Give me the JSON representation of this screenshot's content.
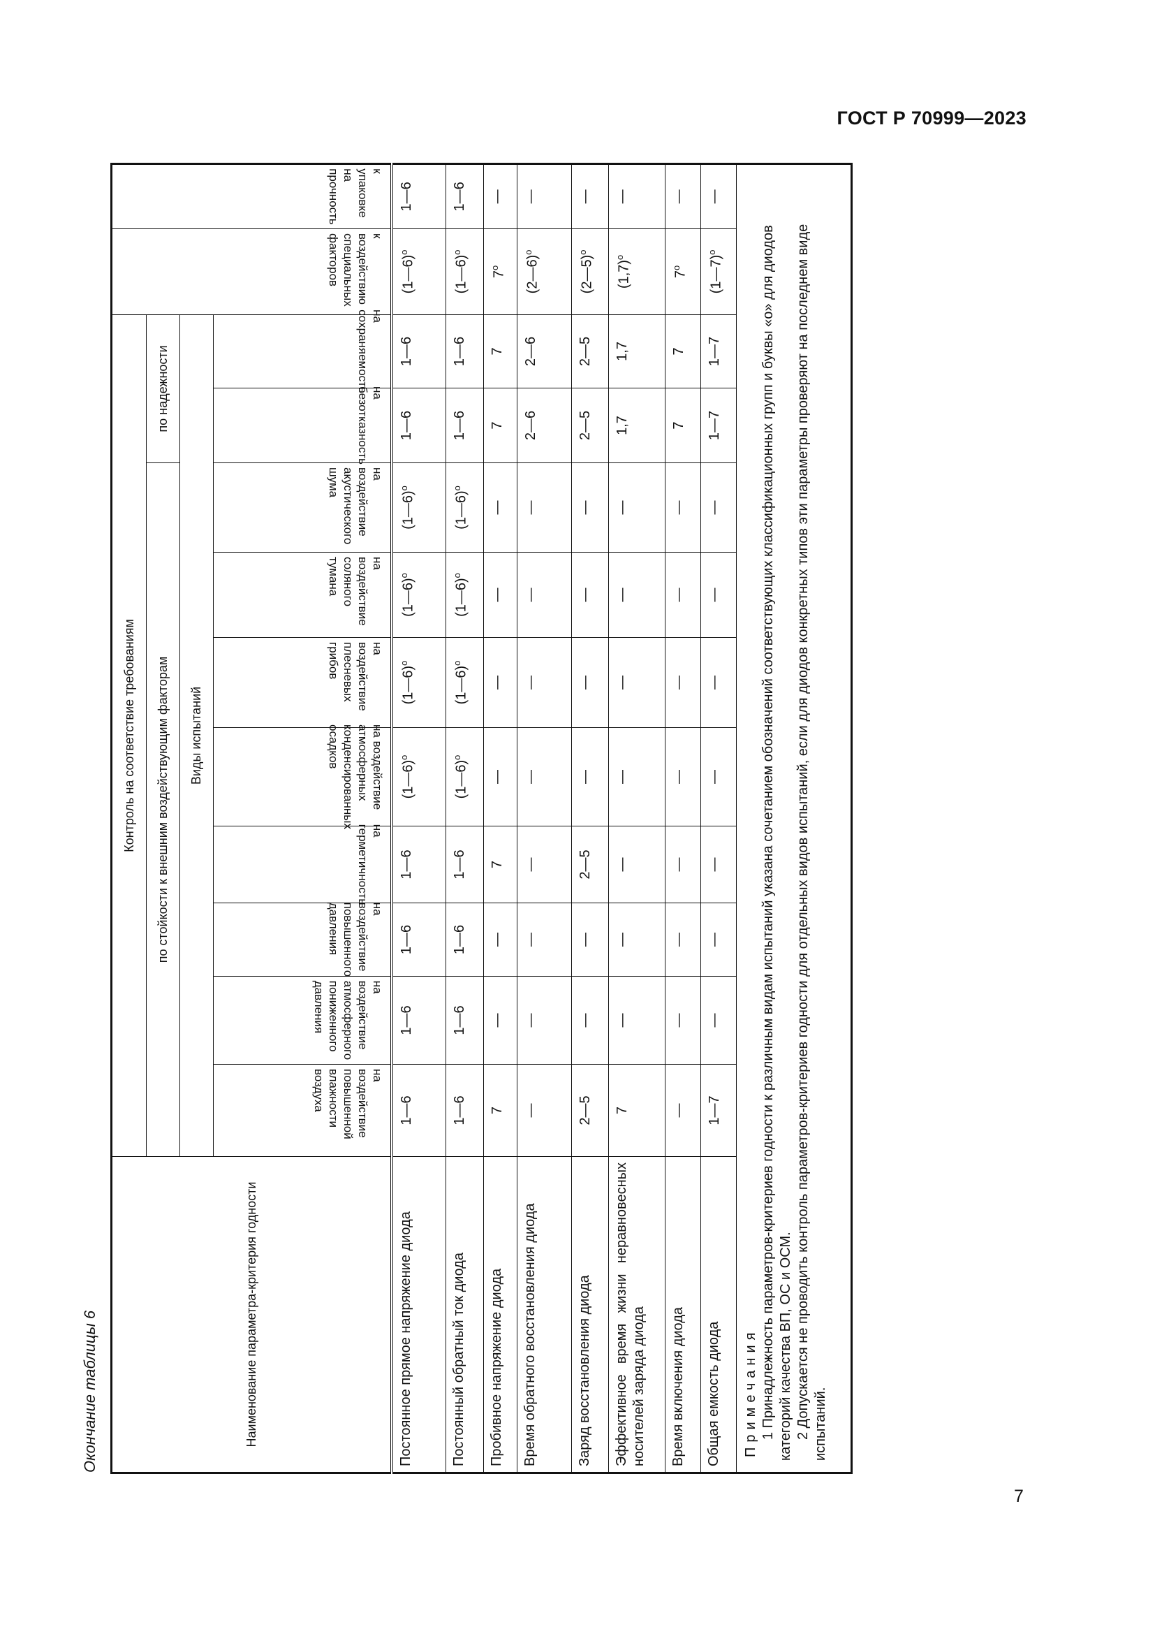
{
  "doc_id": "ГОСТ Р 70999—2023",
  "page_number": "7",
  "caption": "Окончание таблицы 6",
  "table": {
    "name_header": "Наименование параметра-критерия годности",
    "group_header": "Контроль на соответствие требованиям",
    "subgroup_resistance": "по стойкости к внешним воздействующим факторам",
    "subgroup_reliability": "по надежности",
    "test_types_header": "Виды испытаний",
    "special_factors_header": "к воздействию специальных факторов",
    "packaging_header": "к упаковке на прочность",
    "test_columns": [
      "на воздействие повышенной влажности воздуха",
      "на воздействие атмосферного пониженного давления",
      "на воздействие повышенного давления",
      "на герметичность",
      "на воздействие атмосферных конденсированных осадков",
      "на воздействие плесневых грибов",
      "на воздействие соляного тумана",
      "на воздействие акустического шума",
      "на безотказность",
      "на сохраняемость"
    ],
    "rows": [
      {
        "name": "Постоянное прямое напряжение диода",
        "values": [
          "1—6",
          "1—6",
          "1—6",
          "1—6",
          "(1—6)о",
          "(1—6)о",
          "(1—6)о",
          "(1—6)о",
          "1—6",
          "1—6",
          "(1—6)о",
          "1—6"
        ]
      },
      {
        "name": "Постоянный обратный ток диода",
        "values": [
          "1—6",
          "1—6",
          "1—6",
          "1—6",
          "(1—6)о",
          "(1—6)о",
          "(1—6)о",
          "(1—6)о",
          "1—6",
          "1—6",
          "(1—6)о",
          "1—6"
        ]
      },
      {
        "name": "Пробивное напряжение диода",
        "values": [
          "7",
          "—",
          "—",
          "7",
          "—",
          "—",
          "—",
          "—",
          "7",
          "7",
          "7о",
          "—"
        ]
      },
      {
        "name": "Время обратного восстановления диода",
        "values": [
          "—",
          "—",
          "—",
          "—",
          "—",
          "—",
          "—",
          "—",
          "2—6",
          "2—6",
          "(2—6)о",
          "—"
        ]
      },
      {
        "name": "Заряд восстановления диода",
        "values": [
          "2—5",
          "—",
          "—",
          "2—5",
          "—",
          "—",
          "—",
          "—",
          "2—5",
          "2—5",
          "(2—5)о",
          "—"
        ]
      },
      {
        "name": "Эффективное время жизни неравновесных носителей заряда диода",
        "values": [
          "7",
          "—",
          "—",
          "—",
          "—",
          "—",
          "—",
          "—",
          "1,7",
          "1,7",
          "(1,7)о",
          "—"
        ]
      },
      {
        "name": "Время включения диода",
        "values": [
          "—",
          "—",
          "—",
          "—",
          "—",
          "—",
          "—",
          "—",
          "7",
          "7",
          "7о",
          "—"
        ]
      },
      {
        "name": "Общая емкость диода",
        "values": [
          "1—7",
          "—",
          "—",
          "—",
          "—",
          "—",
          "—",
          "—",
          "1—7",
          "1—7",
          "(1—7)о",
          "—"
        ]
      }
    ],
    "notes": {
      "title": "Примечания",
      "items": [
        "1 Принадлежность параметров-критериев годности к различным видам испытаний указана сочетанием обозначений соответствующих классификационных групп и буквы «о» для диодов категорий качества ВП, ОС и ОСМ.",
        "2 Допускается не проводить контроль параметров-критериев годности для отдельных видов испытаний, если для диодов конкретных типов эти параметры проверяют на последнем виде испытаний."
      ]
    }
  }
}
